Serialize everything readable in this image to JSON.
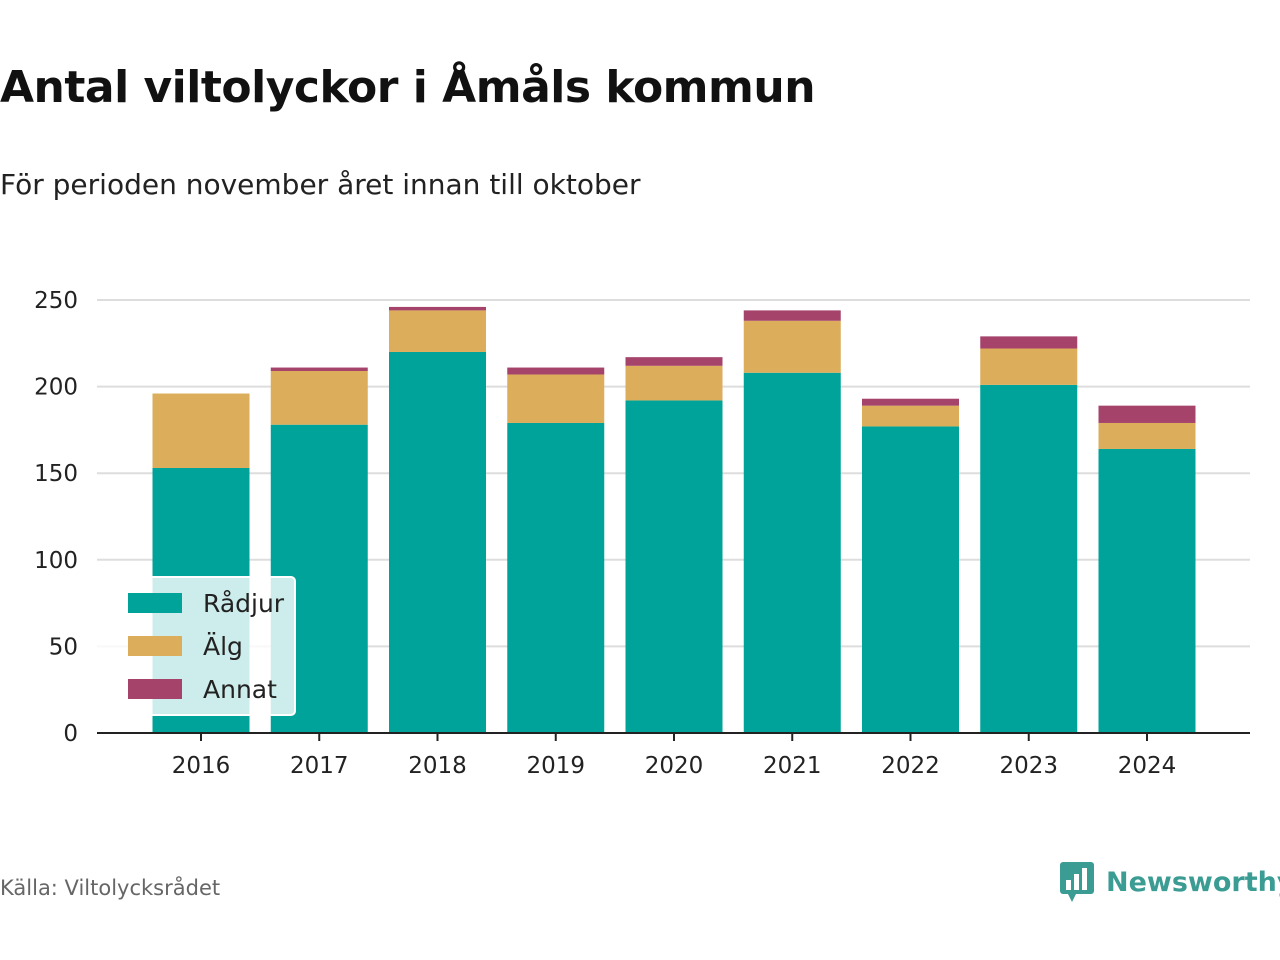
{
  "header": {
    "title": "Antal viltolyckor i Åmåls kommun",
    "subtitle": "För perioden november året innan till oktober"
  },
  "footer": {
    "source": "Källa: Viltolycksrådet",
    "brand": "Newsworthy",
    "brand_icon": "bar-chart-badge-icon"
  },
  "chart_data": {
    "type": "bar",
    "stacked": true,
    "categories": [
      "2016",
      "2017",
      "2018",
      "2019",
      "2020",
      "2021",
      "2022",
      "2023",
      "2024"
    ],
    "series": [
      {
        "name": "Rådjur",
        "color": "#00a39a",
        "values": [
          153,
          178,
          220,
          179,
          192,
          208,
          177,
          201,
          164
        ]
      },
      {
        "name": "Älg",
        "color": "#dcad5a",
        "values": [
          43,
          31,
          24,
          28,
          20,
          30,
          12,
          21,
          15
        ]
      },
      {
        "name": "Annat",
        "color": "#a6436b",
        "values": [
          0,
          2,
          2,
          4,
          5,
          6,
          4,
          7,
          10
        ]
      }
    ],
    "y_ticks": [
      "0",
      "50",
      "100",
      "150",
      "200",
      "250"
    ],
    "ylim": [
      0,
      250
    ],
    "grid": true,
    "legend_position": "bottom-left"
  }
}
